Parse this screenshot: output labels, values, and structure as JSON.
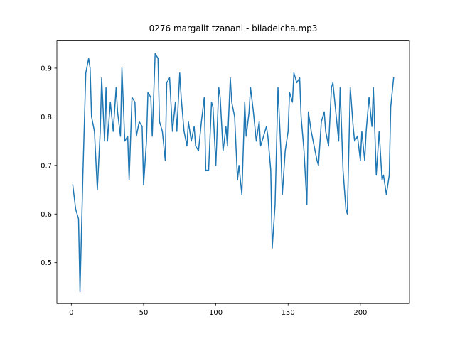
{
  "chart_data": {
    "type": "line",
    "title": "0276 margalit tzanani - biladeicha.mp3",
    "x": [
      1,
      3,
      5,
      6,
      8,
      10,
      12,
      13,
      14,
      16,
      18,
      20,
      21,
      23,
      24,
      25,
      27,
      29,
      31,
      32,
      34,
      35,
      37,
      39,
      40,
      42,
      44,
      45,
      47,
      49,
      50,
      52,
      53,
      55,
      56,
      58,
      60,
      61,
      63,
      65,
      66,
      68,
      70,
      72,
      73,
      75,
      76,
      78,
      80,
      81,
      83,
      85,
      86,
      88,
      90,
      92,
      93,
      95,
      97,
      98,
      100,
      102,
      103,
      105,
      107,
      108,
      110,
      111,
      113,
      115,
      116,
      118,
      120,
      121,
      123,
      124,
      126,
      128,
      130,
      131,
      133,
      135,
      136,
      138,
      139,
      141,
      143,
      145,
      146,
      148,
      150,
      151,
      153,
      154,
      156,
      158,
      159,
      161,
      163,
      164,
      166,
      168,
      170,
      171,
      173,
      175,
      176,
      178,
      180,
      181,
      183,
      185,
      186,
      188,
      190,
      191,
      193,
      195,
      196,
      198,
      200,
      201,
      203,
      204,
      206,
      208,
      209,
      211,
      213,
      215,
      216,
      218,
      220,
      221,
      223
    ],
    "values": [
      0.66,
      0.61,
      0.59,
      0.44,
      0.68,
      0.89,
      0.92,
      0.9,
      0.8,
      0.77,
      0.65,
      0.77,
      0.88,
      0.75,
      0.86,
      0.75,
      0.83,
      0.77,
      0.86,
      0.81,
      0.76,
      0.9,
      0.75,
      0.76,
      0.67,
      0.84,
      0.83,
      0.76,
      0.79,
      0.78,
      0.66,
      0.75,
      0.85,
      0.84,
      0.76,
      0.93,
      0.92,
      0.79,
      0.77,
      0.71,
      0.87,
      0.88,
      0.77,
      0.83,
      0.77,
      0.89,
      0.84,
      0.77,
      0.74,
      0.79,
      0.75,
      0.78,
      0.74,
      0.73,
      0.79,
      0.84,
      0.69,
      0.69,
      0.83,
      0.82,
      0.7,
      0.86,
      0.84,
      0.73,
      0.78,
      0.74,
      0.88,
      0.83,
      0.8,
      0.67,
      0.7,
      0.64,
      0.83,
      0.76,
      0.81,
      0.86,
      0.81,
      0.75,
      0.79,
      0.74,
      0.76,
      0.78,
      0.76,
      0.69,
      0.53,
      0.62,
      0.86,
      0.73,
      0.64,
      0.73,
      0.77,
      0.85,
      0.83,
      0.89,
      0.87,
      0.88,
      0.8,
      0.73,
      0.62,
      0.81,
      0.77,
      0.74,
      0.71,
      0.7,
      0.79,
      0.81,
      0.77,
      0.74,
      0.86,
      0.87,
      0.81,
      0.75,
      0.86,
      0.69,
      0.61,
      0.6,
      0.86,
      0.78,
      0.75,
      0.76,
      0.71,
      0.77,
      0.71,
      0.77,
      0.84,
      0.78,
      0.86,
      0.68,
      0.77,
      0.67,
      0.68,
      0.64,
      0.68,
      0.82,
      0.88
    ],
    "color": "#1f77b4",
    "xlim": [
      -10,
      234
    ],
    "xticks": [
      0,
      50,
      100,
      150,
      200
    ],
    "ylim": [
      0.416,
      0.956
    ],
    "yticks": [
      0.5,
      0.6,
      0.7,
      0.8,
      0.9
    ],
    "grid": false
  }
}
